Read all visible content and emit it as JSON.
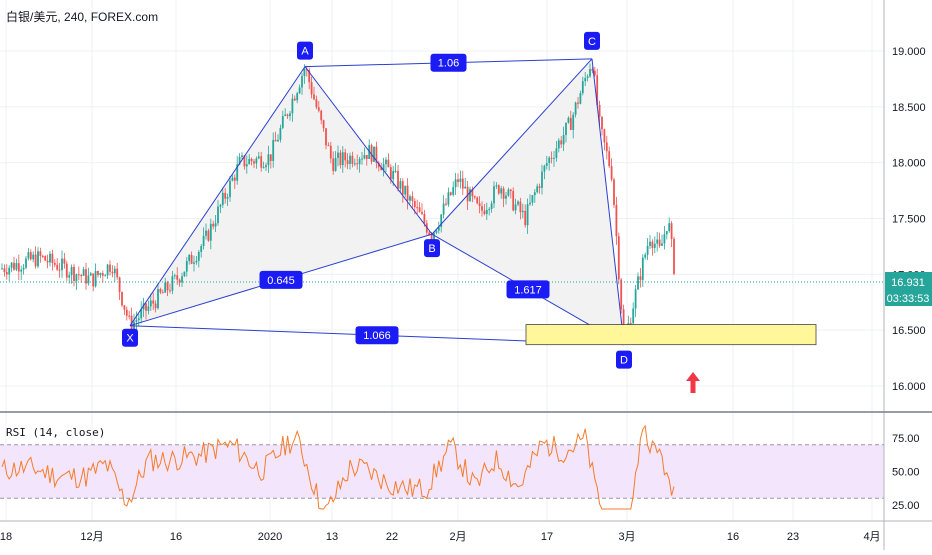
{
  "header": {
    "symbol": "白银/美元",
    "interval": "240",
    "source": "FOREX.com"
  },
  "price_scale": {
    "labels": [
      "19.000",
      "18.500",
      "18.000",
      "17.500",
      "17.000",
      "16.500",
      "16.000"
    ],
    "last_price": "16.931",
    "countdown": "03:33:53",
    "last_price_color": "#26a69a"
  },
  "rsi": {
    "title": "RSI (14, close)",
    "scale_labels": [
      "75.00",
      "50.00",
      "25.00"
    ],
    "upper": 70,
    "lower": 30,
    "line_color": "#f57c2c",
    "band_color": "#f3e5fb"
  },
  "time_axis": {
    "labels": [
      "18",
      "12月",
      "16",
      "2020",
      "13",
      "22",
      "2月",
      "17",
      "3月",
      "16",
      "23",
      "4月"
    ]
  },
  "pattern": {
    "points": [
      {
        "label": "X",
        "price": 16.54
      },
      {
        "label": "A",
        "price": 18.86
      },
      {
        "label": "B",
        "price": 17.36
      },
      {
        "label": "C",
        "price": 18.93
      },
      {
        "label": "D",
        "price": 16.37
      }
    ],
    "ratios": [
      {
        "value": "1.06"
      },
      {
        "value": "0.645"
      },
      {
        "value": "1.617"
      },
      {
        "value": "1.066"
      }
    ],
    "line_color": "#2b3fd1",
    "fill_color": "#f2f2f2"
  },
  "target_zone": {
    "from": 16.37,
    "to": 16.55,
    "color": "#fff799"
  },
  "arrow": {
    "direction": "up",
    "color": "#f23645"
  },
  "chart_data": {
    "type": "candlestick",
    "title": "白银/美元, 240, FOREX.com",
    "ylim": [
      15.8,
      19.4
    ],
    "y_ticks": [
      16.0,
      16.5,
      17.0,
      17.5,
      18.0,
      18.5,
      19.0
    ],
    "x_ticks": [
      "18",
      "12月",
      "16",
      "2020",
      "13",
      "22",
      "2月",
      "17",
      "3月",
      "16",
      "23",
      "4月"
    ],
    "approx_path": [
      {
        "x": "18",
        "close": 17.05
      },
      {
        "x": "12月",
        "close": 16.95
      },
      {
        "x": "X",
        "close": 16.54
      },
      {
        "x": "16",
        "close": 16.95
      },
      {
        "x": "2020",
        "close": 18.0
      },
      {
        "x": "A",
        "close": 18.86
      },
      {
        "x": "13",
        "close": 18.0
      },
      {
        "x": "22",
        "close": 17.9
      },
      {
        "x": "B",
        "close": 17.36
      },
      {
        "x": "2月",
        "close": 17.55
      },
      {
        "x": "17",
        "close": 18.3
      },
      {
        "x": "C",
        "close": 18.93
      },
      {
        "x": "D",
        "close": 16.37
      },
      {
        "x": "3月",
        "close": 17.2
      },
      {
        "x": "last",
        "close": 16.931
      }
    ],
    "last_price": 16.931,
    "harmonic_pattern": {
      "points": [
        "X",
        "A",
        "B",
        "C",
        "D"
      ],
      "ratios": {
        "XAB": 0.645,
        "AC": 1.06,
        "BCD": 1.617,
        "XAD": 1.066
      }
    },
    "indicator": {
      "name": "RSI (14, close)",
      "ylim": [
        15,
        90
      ],
      "ticks": [
        25,
        50,
        75
      ],
      "bands": [
        30,
        70
      ]
    },
    "up_color": "#26a69a",
    "down_color": "#ef5350"
  }
}
